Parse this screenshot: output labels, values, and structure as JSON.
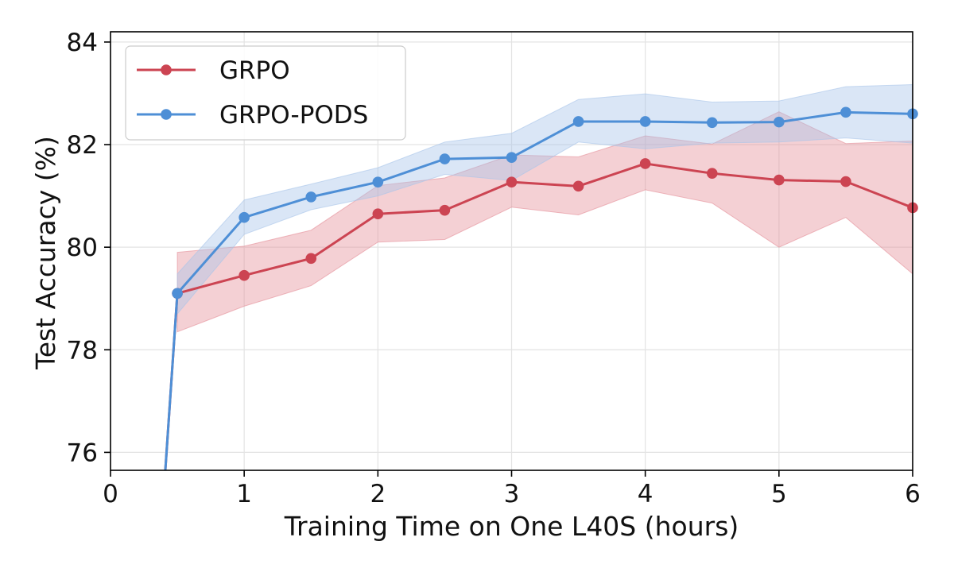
{
  "chart_data": {
    "type": "line",
    "title": "",
    "xlabel": "Training Time on One L40S (hours)",
    "ylabel": "Test Accuracy (%)",
    "xlim": [
      0,
      6
    ],
    "ylim": [
      75.65,
      84.2
    ],
    "xticks": [
      0,
      1,
      2,
      3,
      4,
      5,
      6
    ],
    "xtick_labels": [
      "0",
      "1",
      "2",
      "3",
      "4",
      "5",
      "6"
    ],
    "yticks": [
      76,
      78,
      80,
      82,
      84
    ],
    "ytick_labels": [
      "76",
      "78",
      "80",
      "82",
      "84"
    ],
    "grid": true,
    "legend_position": "top-left",
    "series": [
      {
        "name": "GRPO",
        "color": "#cc4452",
        "band_color": "#e58e98",
        "x": [
          0.5,
          1.0,
          1.5,
          2.0,
          2.5,
          3.0,
          3.5,
          4.0,
          4.5,
          5.0,
          5.5,
          6.0
        ],
        "y": [
          79.1,
          79.45,
          79.78,
          80.65,
          80.72,
          81.27,
          81.19,
          81.63,
          81.44,
          81.31,
          81.28,
          80.77
        ],
        "y_lower": [
          78.35,
          78.85,
          79.25,
          80.1,
          80.15,
          80.78,
          80.63,
          81.12,
          80.86,
          80.0,
          80.58,
          79.48
        ],
        "y_upper": [
          79.9,
          80.02,
          80.33,
          81.2,
          81.35,
          81.8,
          81.76,
          82.17,
          82.01,
          82.64,
          82.02,
          82.07
        ],
        "entry_line": [
          {
            "x": 0.41,
            "y": 75.65
          }
        ]
      },
      {
        "name": "GRPO-PODS",
        "color": "#4e8fd6",
        "band_color": "#a8c4ea",
        "x": [
          0.5,
          1.0,
          1.5,
          2.0,
          2.5,
          3.0,
          3.5,
          4.0,
          4.5,
          5.0,
          5.5,
          6.0
        ],
        "y": [
          79.1,
          80.58,
          80.98,
          81.27,
          81.72,
          81.75,
          82.45,
          82.45,
          82.43,
          82.44,
          82.63,
          82.6
        ],
        "y_lower": [
          78.7,
          80.25,
          80.73,
          81.0,
          81.42,
          81.3,
          82.05,
          81.92,
          82.03,
          82.05,
          82.13,
          82.03
        ],
        "y_upper": [
          79.48,
          80.92,
          81.23,
          81.55,
          82.05,
          82.22,
          82.88,
          82.99,
          82.83,
          82.85,
          83.13,
          83.17
        ],
        "entry_line": [
          {
            "x": 0.41,
            "y": 75.65
          }
        ]
      }
    ]
  }
}
